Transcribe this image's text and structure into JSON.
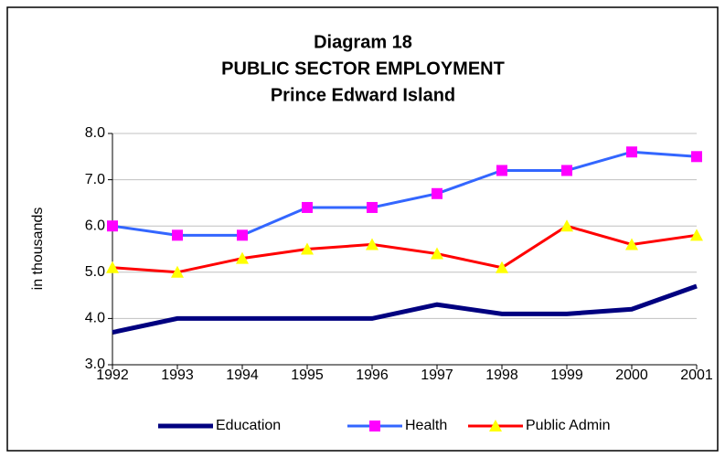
{
  "chart_data": {
    "type": "line",
    "title": [
      "Diagram 18",
      "PUBLIC SECTOR EMPLOYMENT",
      "Prince Edward Island"
    ],
    "ylabel": "in thousands",
    "categories": [
      "1992",
      "1993",
      "1994",
      "1995",
      "1996",
      "1997",
      "1998",
      "1999",
      "2000",
      "2001"
    ],
    "series": [
      {
        "name": "Education",
        "color": "#000080",
        "values": [
          3.7,
          4.0,
          4.0,
          4.0,
          4.0,
          4.3,
          4.1,
          4.1,
          4.2,
          4.7
        ]
      },
      {
        "name": "Health",
        "color": "#3366ff",
        "marker": "square",
        "marker_color": "#ff00ff",
        "values": [
          6.0,
          5.8,
          5.8,
          6.4,
          6.4,
          6.7,
          7.2,
          7.2,
          7.6,
          7.5
        ]
      },
      {
        "name": "Public Admin",
        "color": "#ff0000",
        "marker": "triangle",
        "marker_color": "#ffff00",
        "values": [
          5.1,
          5.0,
          5.3,
          5.5,
          5.6,
          5.4,
          5.1,
          6.0,
          5.6,
          5.8
        ]
      }
    ],
    "ylim": [
      3,
      8
    ],
    "yticks": [
      {
        "value": 3,
        "label": "3.0"
      },
      {
        "value": 4,
        "label": "4.0"
      },
      {
        "value": 5,
        "label": "5.0"
      },
      {
        "value": 6,
        "label": "6.0"
      },
      {
        "value": 7,
        "label": "7.0"
      },
      {
        "value": 8,
        "label": "8.0"
      }
    ],
    "grid": true,
    "legend": "bottom"
  }
}
